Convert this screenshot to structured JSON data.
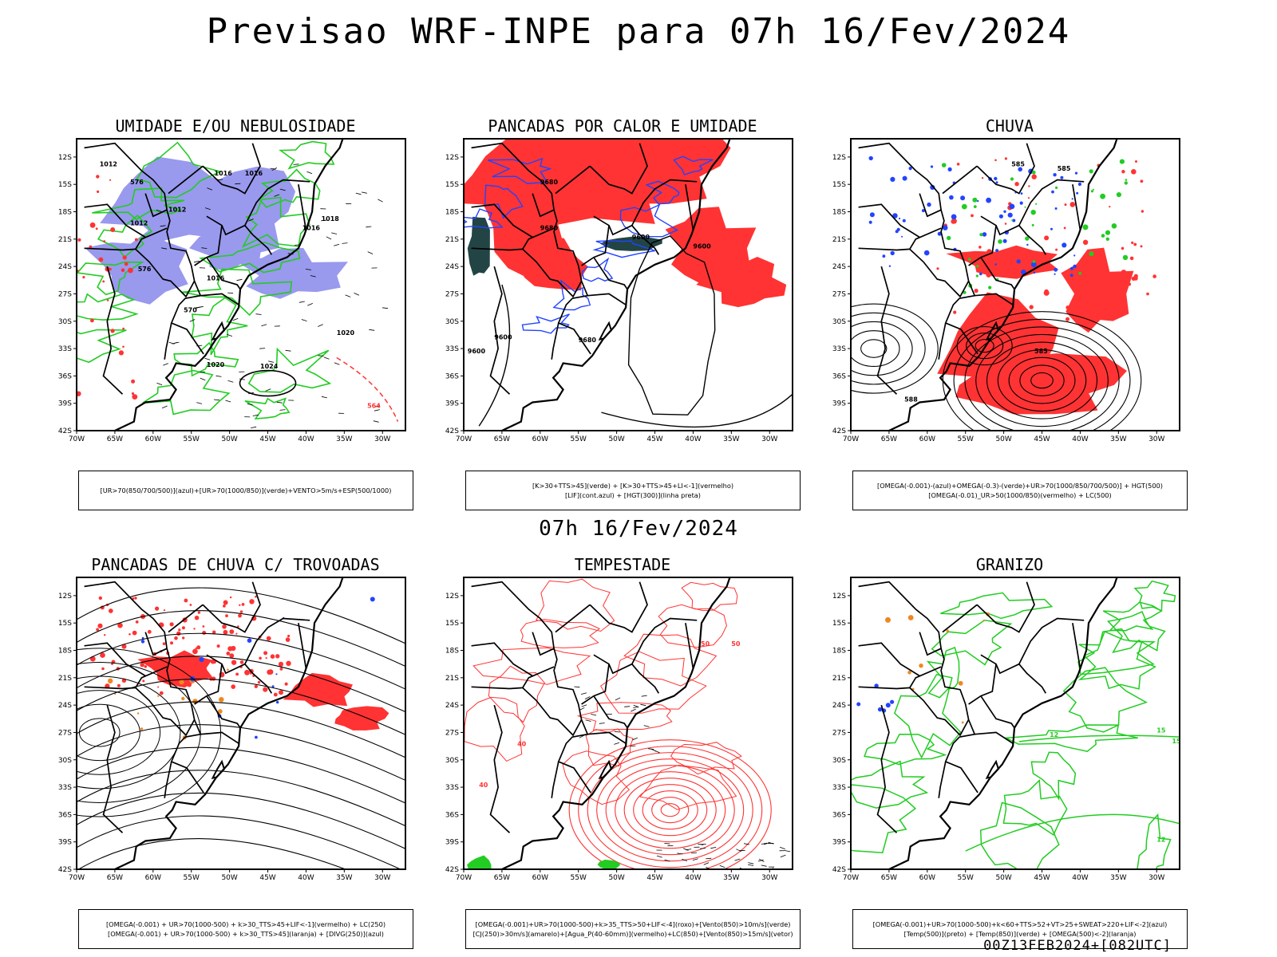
{
  "title": "Previsao WRF-INPE  para 07h 16/Fev/2024",
  "mid_date": "07h 16/Fev/2024",
  "footer": "00Z13FEB2024+[082UTC]",
  "axes": {
    "lat_ticks": [
      "12S",
      "15S",
      "18S",
      "21S",
      "24S",
      "27S",
      "30S",
      "33S",
      "36S",
      "39S",
      "42S"
    ],
    "lon_ticks": [
      "70W",
      "65W",
      "60W",
      "55W",
      "50W",
      "45W",
      "40W",
      "35W",
      "30W"
    ]
  },
  "colors": {
    "green": "#22cc22",
    "red": "#ff3333",
    "blue": "#2244ff",
    "lavender": "#9999ee",
    "darkteal": "#224444",
    "orange": "#ee8822",
    "black": "#000000"
  },
  "panels": [
    {
      "title": "UMIDADE E/OU NEBULOSIDADE",
      "legend": [
        "[UR>70(850/700/500)](azul)+[UR>70(1000/850)](verde)+VENTO>5m/s+ESP(500/1000)"
      ],
      "labels": [
        "1012",
        "1012",
        "1012",
        "1016",
        "1016",
        "1016",
        "1016",
        "1018",
        "1020",
        "1020",
        "1024",
        "576",
        "576",
        "570",
        "564"
      ]
    },
    {
      "title": "PANCADAS POR CALOR E UMIDADE",
      "legend": [
        "[K>30+TTS>45](verde) + [K>30+TTS>45+LI<-1](vermelho)",
        "[LIF](cont.azul) + [HGT(300)](linha preta)"
      ],
      "labels": [
        "9680",
        "9680",
        "9600",
        "9600",
        "9600",
        "9680",
        "9600"
      ]
    },
    {
      "title": "CHUVA",
      "legend": [
        "[OMEGA(-0.001)-(azul)+OMEGA(-0.3)-(verde)+UR>70(1000/850/700/500)] + HGT(500)",
        "[OMEGA(-0.01)_UR>50(1000/850)(vermelho) + LC(500)"
      ],
      "labels": [
        "585",
        "585",
        "588",
        "585"
      ]
    },
    {
      "title": "PANCADAS DE CHUVA C/ TROVOADAS",
      "legend": [
        "[OMEGA(-0.001) + UR>70(1000-500) + k>30_TTS>45+LIF<-1](vermelho) + LC(250)",
        "[OMEGA(-0.001) + UR>70(1000-500) + k>30_TTS>45](laranja) + [DIVG(250)](azul)"
      ],
      "labels": []
    },
    {
      "title": "TEMPESTADE",
      "legend": [
        "[OMEGA(-0.001)+UR>70(1000-500)+k>35_TTS>50+LIF<-4](roxo)+[Vento(850)>10m/s](verde)",
        "[CJ(250)>30m/s](amarelo)+[Agua_P(40-60mm)](vermelho)+LC(850)+[Vento(850)>15m/s](vetor)"
      ],
      "labels": [
        "40",
        "40",
        "50",
        "50"
      ]
    },
    {
      "title": "GRANIZO",
      "legend": [
        "[OMEGA(-0.001)+UR>70(1000-500)+k<60+TTS>52+VT>25+SWEAT>220+LIF<-2](azul)",
        "[Temp(500)](preto) + [Temp(850)](verde) + [OMEGA(500)<-2](laranja)"
      ],
      "labels": [
        "15",
        "15",
        "12",
        "12"
      ]
    }
  ]
}
